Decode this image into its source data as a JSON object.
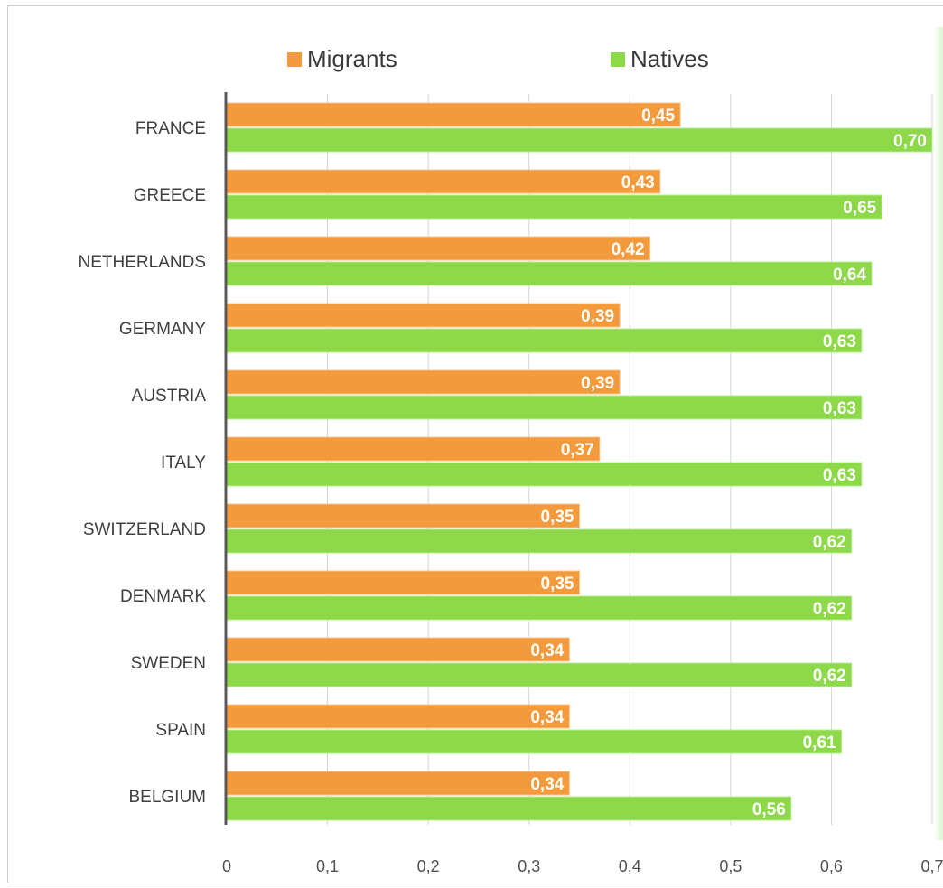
{
  "chart_data": {
    "type": "bar",
    "orientation": "horizontal",
    "categories": [
      "FRANCE",
      "GREECE",
      "NETHERLANDS",
      "GERMANY",
      "AUSTRIA",
      "ITALY",
      "SWITZERLAND",
      "DENMARK",
      "SWEDEN",
      "SPAIN",
      "BELGIUM"
    ],
    "series": [
      {
        "name": "Migrants",
        "color": "#f39b3c",
        "values": [
          0.45,
          0.43,
          0.42,
          0.39,
          0.39,
          0.37,
          0.35,
          0.35,
          0.34,
          0.34,
          0.34
        ],
        "labels": [
          "0,45",
          "0,43",
          "0,42",
          "0,39",
          "0,39",
          "0,37",
          "0,35",
          "0,35",
          "0,34",
          "0,34",
          "0,34"
        ]
      },
      {
        "name": "Natives",
        "color": "#8dd94a",
        "values": [
          0.7,
          0.65,
          0.64,
          0.63,
          0.63,
          0.63,
          0.62,
          0.62,
          0.62,
          0.61,
          0.56
        ],
        "labels": [
          "0,70",
          "0,65",
          "0,64",
          "0,63",
          "0,63",
          "0,63",
          "0,62",
          "0,62",
          "0,62",
          "0,61",
          "0,56"
        ]
      }
    ],
    "xlim": [
      0,
      0.7
    ],
    "x_ticks": [
      0,
      0.1,
      0.2,
      0.3,
      0.4,
      0.5,
      0.6,
      0.7
    ],
    "x_tick_labels": [
      "0",
      "0,1",
      "0,2",
      "0,3",
      "0,4",
      "0,5",
      "0,6",
      "0,7"
    ],
    "grid": true,
    "legend_position": "top",
    "title": "",
    "xlabel": "",
    "ylabel": ""
  }
}
